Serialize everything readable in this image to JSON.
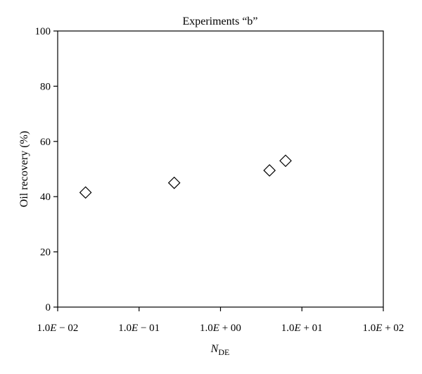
{
  "chart_data": {
    "type": "scatter",
    "title": "Experiments “b”",
    "xlabel": {
      "main": "N",
      "sub": "DE"
    },
    "ylabel": "Oil recovery (%)",
    "x_scale": "log",
    "xlim": [
      0.01,
      100
    ],
    "ylim": [
      0,
      100
    ],
    "x_ticks": [
      {
        "value": 0.01,
        "label_parts": [
          "1.0",
          "E",
          " − 02"
        ]
      },
      {
        "value": 0.1,
        "label_parts": [
          "1.0",
          "E",
          " − 01"
        ]
      },
      {
        "value": 1,
        "label_parts": [
          "1.0",
          "E",
          " + 00"
        ]
      },
      {
        "value": 10,
        "label_parts": [
          "1.0",
          "E",
          " + 01"
        ]
      },
      {
        "value": 100,
        "label_parts": [
          "1.0",
          "E",
          " + 02"
        ]
      }
    ],
    "y_ticks": [
      {
        "value": 0,
        "label": "0"
      },
      {
        "value": 20,
        "label": "20"
      },
      {
        "value": 40,
        "label": "40"
      },
      {
        "value": 60,
        "label": "60"
      },
      {
        "value": 80,
        "label": "80"
      },
      {
        "value": 100,
        "label": "100"
      }
    ],
    "grid": false,
    "marker": "diamond-open",
    "points": [
      {
        "x": 0.022,
        "y": 41.5
      },
      {
        "x": 0.27,
        "y": 45
      },
      {
        "x": 4.0,
        "y": 49.5
      },
      {
        "x": 6.3,
        "y": 53
      }
    ]
  }
}
